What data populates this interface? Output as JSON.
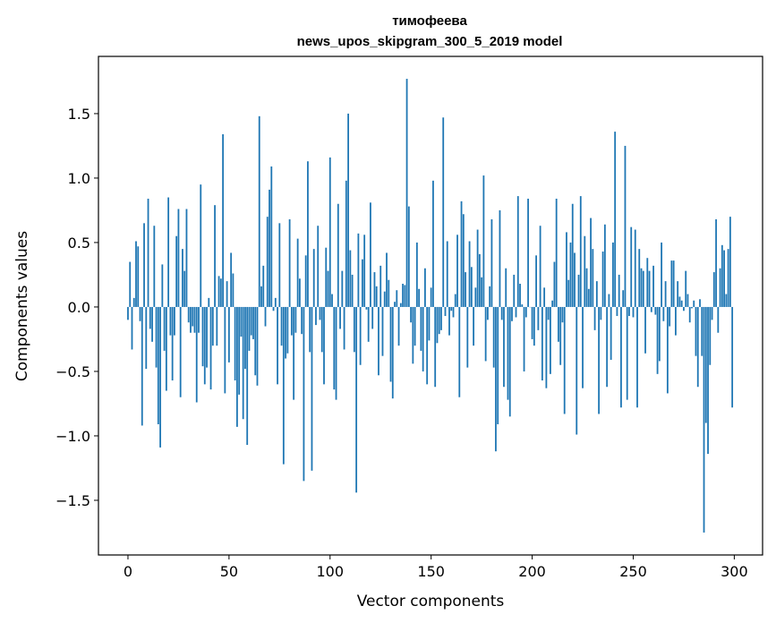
{
  "chart_data": {
    "type": "bar",
    "title": [
      "тимофеева",
      "news_upos_skipgram_300_5_2019 model"
    ],
    "xlabel": "Vector components",
    "ylabel": "Components values",
    "xlim": [
      -14.6,
      314
    ],
    "ylim": [
      -1.924,
      1.944
    ],
    "xticks": [
      0,
      50,
      100,
      150,
      200,
      250,
      300
    ],
    "yticks": [
      -1.5,
      -1.0,
      -0.5,
      0.0,
      0.5,
      1.0,
      1.5
    ],
    "ytick_labels": [
      "−1.5",
      "−1.0",
      "−0.5",
      "0.0",
      "0.5",
      "1.0",
      "1.5"
    ],
    "color": "#1f77b4",
    "grid": false,
    "values": [
      -0.1,
      0.35,
      -0.33,
      0.07,
      0.51,
      0.47,
      -0.11,
      -0.92,
      0.65,
      -0.48,
      0.84,
      -0.17,
      -0.27,
      0.63,
      -0.47,
      -0.91,
      -1.09,
      0.33,
      -0.34,
      -0.65,
      0.85,
      -0.22,
      -0.57,
      -0.22,
      0.55,
      0.76,
      -0.7,
      0.45,
      0.28,
      0.76,
      -0.12,
      -0.2,
      -0.15,
      -0.2,
      -0.74,
      -0.2,
      0.95,
      -0.46,
      -0.6,
      -0.47,
      0.07,
      -0.64,
      -0.3,
      0.79,
      -0.3,
      0.24,
      0.22,
      1.34,
      -0.67,
      0.2,
      -0.43,
      0.42,
      0.26,
      -0.57,
      -0.93,
      -0.68,
      -0.23,
      -0.87,
      -0.48,
      -1.07,
      -0.34,
      -0.22,
      -0.25,
      -0.53,
      -0.61,
      1.48,
      0.16,
      0.32,
      -0.15,
      0.7,
      0.91,
      1.09,
      -0.03,
      0.07,
      -0.6,
      0.65,
      -0.3,
      -1.22,
      -0.4,
      -0.36,
      0.68,
      -0.22,
      -0.72,
      -0.2,
      0.53,
      0.22,
      -0.21,
      -1.35,
      0.4,
      1.13,
      -0.35,
      -1.27,
      0.45,
      -0.14,
      0.63,
      -0.1,
      -0.35,
      -0.6,
      0.46,
      0.28,
      1.16,
      0.1,
      -0.64,
      -0.72,
      0.8,
      -0.17,
      0.28,
      -0.33,
      0.98,
      1.5,
      0.44,
      0.25,
      -0.35,
      -1.44,
      0.57,
      -0.45,
      0.37,
      0.56,
      -0.02,
      -0.27,
      0.81,
      -0.17,
      0.27,
      0.16,
      -0.53,
      0.32,
      -0.38,
      0.12,
      0.42,
      0.21,
      -0.58,
      -0.71,
      0.04,
      0.13,
      -0.3,
      0.03,
      0.18,
      0.17,
      1.77,
      0.78,
      -0.12,
      -0.44,
      -0.3,
      0.5,
      0.14,
      -0.34,
      -0.5,
      0.3,
      -0.6,
      -0.26,
      0.15,
      0.98,
      -0.62,
      -0.28,
      -0.21,
      -0.18,
      1.47,
      -0.07,
      0.51,
      -0.22,
      -0.03,
      -0.08,
      0.1,
      0.56,
      -0.7,
      0.82,
      0.72,
      0.27,
      -0.47,
      0.51,
      0.31,
      -0.3,
      0.15,
      0.6,
      0.41,
      0.23,
      1.02,
      -0.42,
      -0.1,
      0.16,
      0.68,
      -0.47,
      -1.12,
      -0.91,
      0.75,
      -0.1,
      -0.62,
      0.3,
      -0.72,
      -0.85,
      -0.11,
      0.25,
      -0.08,
      0.86,
      0.18,
      0.02,
      -0.5,
      -0.08,
      0.84,
      0.0,
      -0.25,
      -0.3,
      0.4,
      -0.18,
      0.63,
      -0.57,
      0.15,
      -0.63,
      -0.1,
      -0.52,
      0.05,
      0.35,
      0.84,
      -0.27,
      -0.45,
      -0.12,
      -0.83,
      0.58,
      0.21,
      0.5,
      0.8,
      0.42,
      -0.99,
      0.25,
      0.86,
      -0.63,
      0.55,
      0.3,
      0.14,
      0.69,
      0.45,
      -0.18,
      0.2,
      -0.83,
      -0.1,
      0.43,
      0.64,
      -0.62,
      0.1,
      -0.41,
      0.5,
      1.36,
      -0.07,
      0.25,
      -0.78,
      0.13,
      1.25,
      -0.72,
      -0.07,
      0.62,
      -0.08,
      0.6,
      -0.78,
      0.45,
      0.3,
      0.28,
      -0.36,
      0.38,
      0.28,
      -0.04,
      0.32,
      -0.06,
      -0.52,
      -0.42,
      0.5,
      -0.11,
      0.2,
      -0.67,
      -0.15,
      0.36,
      0.36,
      -0.22,
      0.2,
      0.08,
      0.05,
      -0.03,
      0.28,
      0.1,
      -0.12,
      -0.01,
      0.05,
      -0.38,
      -0.62,
      0.06,
      -0.38,
      -1.75,
      -0.9,
      -1.14,
      -0.45,
      -0.1,
      0.27,
      0.68,
      -0.2,
      0.3,
      0.48,
      0.44,
      0.1,
      0.45,
      0.7,
      -0.78
    ]
  }
}
